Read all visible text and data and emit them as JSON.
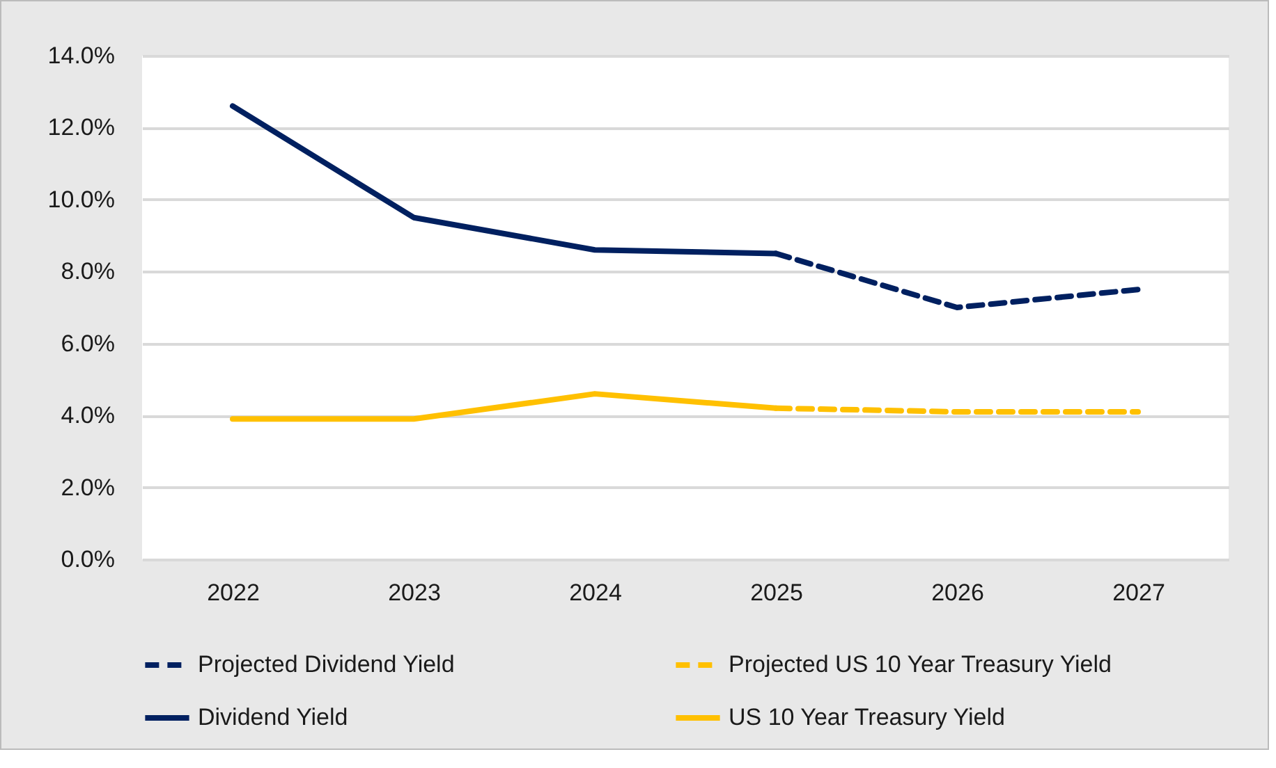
{
  "chart_data": {
    "type": "line",
    "categories": [
      "2022",
      "2023",
      "2024",
      "2025",
      "2026",
      "2027"
    ],
    "series": [
      {
        "name": "Projected Dividend Yield",
        "color": "#002060",
        "line_style": "dashed",
        "values": [
          null,
          null,
          null,
          8.5,
          7.0,
          7.5
        ]
      },
      {
        "name": "Projected US 10 Year Treasury Yield",
        "color": "#ffc000",
        "line_style": "dashed",
        "values": [
          null,
          null,
          null,
          4.2,
          4.1,
          4.1
        ]
      },
      {
        "name": "Dividend Yield",
        "color": "#002060",
        "line_style": "solid",
        "values": [
          12.6,
          9.5,
          8.6,
          8.5,
          null,
          null
        ]
      },
      {
        "name": "US 10 Year Treasury Yield",
        "color": "#ffc000",
        "line_style": "solid",
        "values": [
          3.9,
          3.9,
          4.6,
          4.2,
          null,
          null
        ]
      }
    ],
    "ylim": [
      0,
      14
    ],
    "yticks": [
      {
        "value": 0,
        "label": "0.0%"
      },
      {
        "value": 2,
        "label": "2.0%"
      },
      {
        "value": 4,
        "label": "4.0%"
      },
      {
        "value": 6,
        "label": "6.0%"
      },
      {
        "value": 8,
        "label": "8.0%"
      },
      {
        "value": 10,
        "label": "10.0%"
      },
      {
        "value": 12,
        "label": "12.0%"
      },
      {
        "value": 14,
        "label": "14.0%"
      }
    ],
    "grid": "y",
    "legend": "bottom"
  }
}
